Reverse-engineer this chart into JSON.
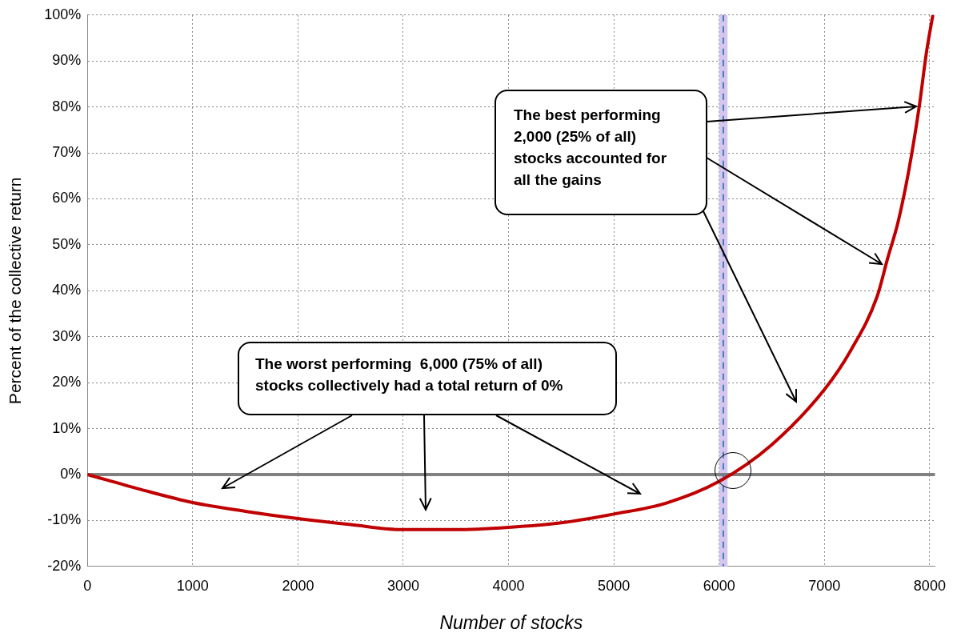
{
  "chart_data": {
    "type": "line",
    "xlabel": "Number of stocks",
    "ylabel": "Percent of the collective return",
    "x": [
      0,
      500,
      1000,
      1500,
      2000,
      2500,
      3000,
      3500,
      4000,
      4500,
      5000,
      5500,
      6000,
      6500,
      7000,
      7250,
      7500,
      7600,
      7700,
      7800,
      7900,
      7970,
      8030
    ],
    "series": [
      {
        "color": "#c00000",
        "values": [
          0,
          -3.2,
          -6.1,
          -8,
          -9.6,
          -10.9,
          -12,
          -12,
          -11.5,
          -10.5,
          -8.6,
          -6.2,
          -1.5,
          6.5,
          18.5,
          27,
          38.7,
          47,
          55,
          66,
          80,
          92,
          100
        ]
      }
    ],
    "xlim": [
      0,
      8050
    ],
    "xticks": [
      0,
      1000,
      2000,
      3000,
      4000,
      5000,
      6000,
      7000,
      8000
    ],
    "ylim": [
      -20,
      100
    ],
    "yticks": [
      {
        "value": -20,
        "label": "-20%"
      },
      {
        "value": -10,
        "label": "-10%"
      },
      {
        "value": 0,
        "label": "0%"
      },
      {
        "value": 10,
        "label": "10%"
      },
      {
        "value": 20,
        "label": "20%"
      },
      {
        "value": 30,
        "label": "30%"
      },
      {
        "value": 40,
        "label": "40%"
      },
      {
        "value": 50,
        "label": "50%"
      },
      {
        "value": 60,
        "label": "60%"
      },
      {
        "value": 70,
        "label": "70%"
      },
      {
        "value": 80,
        "label": "80%"
      },
      {
        "value": 90,
        "label": "90%"
      },
      {
        "value": 100,
        "label": "100%"
      }
    ],
    "ref_lines": [
      {
        "axis": "y",
        "value": 0,
        "color": "#808080",
        "line_style": "solid"
      },
      {
        "axis": "x",
        "value": 6040,
        "color": "#4a7ebb",
        "line_style": "dashed"
      }
    ],
    "bands": [
      {
        "axis": "x",
        "from": 6000,
        "to": 6080,
        "color": "#d4c6ee"
      }
    ],
    "annotations": [
      "The best performing 2,000 (25% of all) stocks accounted for all the gains",
      "The worst performing  6,000 (75% of all) stocks collectively had a total return of 0%"
    ],
    "grid": true,
    "marker": "none",
    "line_style": "solid",
    "legend": false
  }
}
